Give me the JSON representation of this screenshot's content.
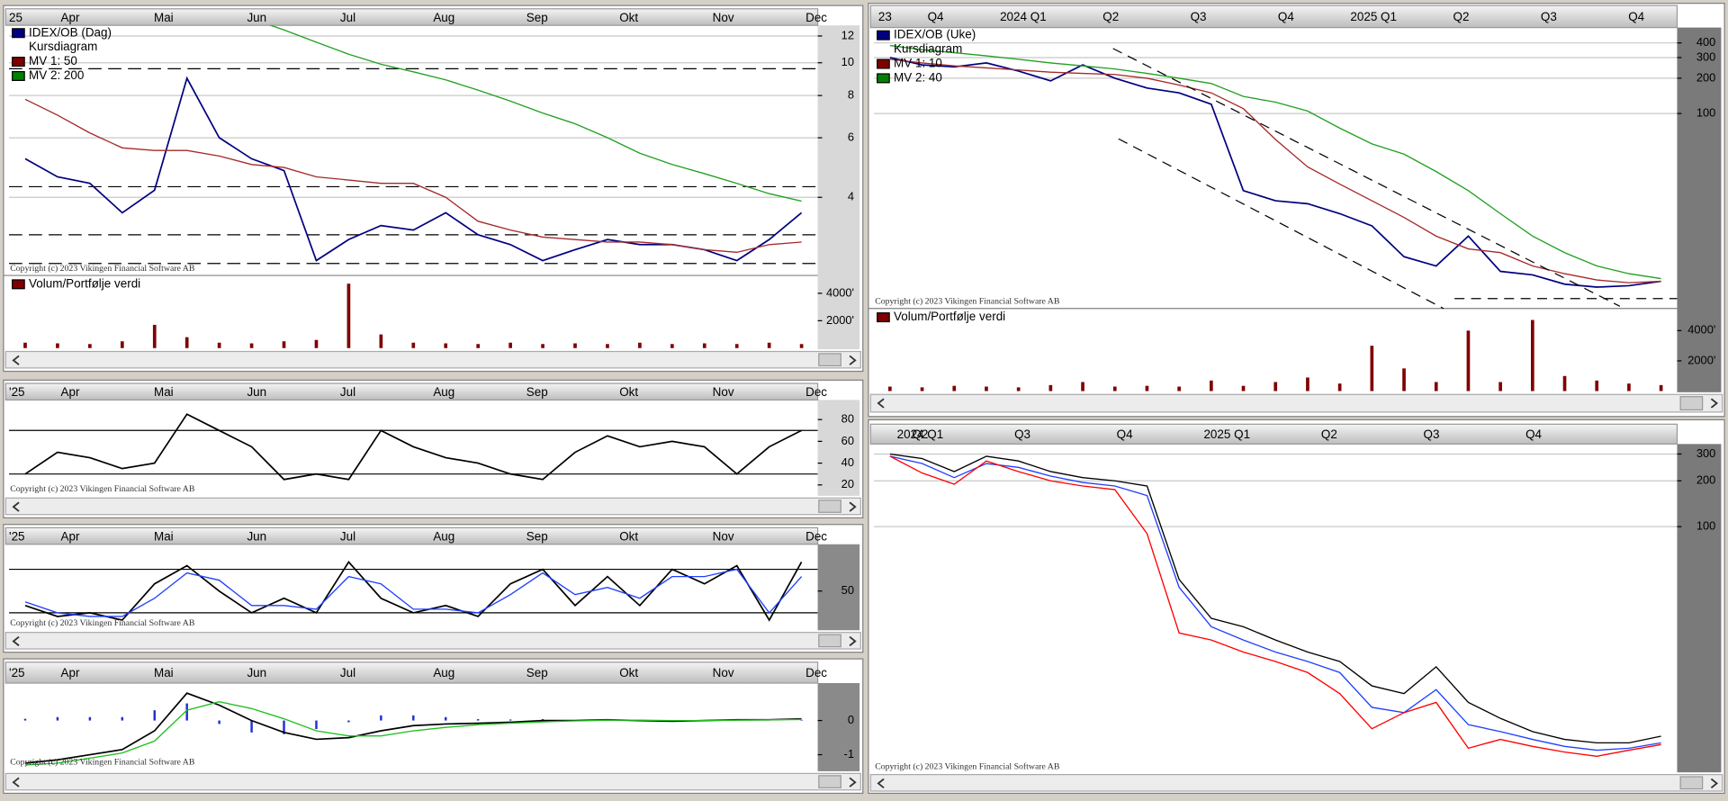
{
  "copyright": "Copyright (c) 2023 Vikingen Financial Software AB",
  "panels": [
    {
      "x_labels": [
        "25",
        "Apr",
        "Mai",
        "Jun",
        "Jul",
        "Aug",
        "Sep",
        "Okt",
        "Nov",
        "Dec"
      ],
      "legend": [
        {
          "text": "IDEX/OB (Dag)",
          "color": "#000080"
        },
        {
          "text": "Kursdiagram"
        },
        {
          "text": "MV 1: 50",
          "color": "#800000"
        },
        {
          "text": "MV 2: 200",
          "color": "#008000"
        }
      ],
      "price": {
        "log": true,
        "ylim": [
          2.35,
          12.9
        ],
        "yticks": [
          12,
          10,
          8,
          6,
          4
        ],
        "grid": true,
        "hline_style": "dashed",
        "hlines": [
          9.6,
          4.3,
          3.1,
          2.55
        ],
        "series": [
          {
            "color": "#000080",
            "values": [
              5.2,
              4.6,
              4.4,
              3.6,
              4.2,
              9.0,
              6.0,
              5.2,
              4.8,
              2.6,
              3.0,
              3.3,
              3.2,
              3.6,
              3.1,
              2.9,
              2.6,
              2.8,
              3.0,
              2.9,
              2.9,
              2.8,
              2.6,
              3.0,
              3.6
            ]
          },
          {
            "color": "#a52a2a",
            "values": [
              7.8,
              7.0,
              6.2,
              5.6,
              5.5,
              5.5,
              5.3,
              5.0,
              4.9,
              4.6,
              4.5,
              4.4,
              4.4,
              4.0,
              3.4,
              3.2,
              3.05,
              3.0,
              2.95,
              2.95,
              2.9,
              2.8,
              2.75,
              2.9,
              2.95
            ]
          },
          {
            "color": "#22a022",
            "values": [
              null,
              null,
              null,
              null,
              null,
              null,
              null,
              13.5,
              12.5,
              11.5,
              10.6,
              9.9,
              9.4,
              8.9,
              8.3,
              7.7,
              7.1,
              6.6,
              6.0,
              5.4,
              5.0,
              4.7,
              4.4,
              4.1,
              3.9
            ]
          }
        ]
      },
      "volume": {
        "title": "Volum/Portfølje verdi",
        "color": "#800000",
        "ylim": [
          0,
          5300
        ],
        "yticks": [
          {
            "value": 4000,
            "label": "4000'"
          },
          {
            "value": 2000,
            "label": "2000'"
          }
        ],
        "values": [
          400,
          350,
          300,
          500,
          1700,
          800,
          400,
          350,
          500,
          600,
          4700,
          1000,
          400,
          350,
          300,
          400,
          300,
          350,
          300,
          400,
          300,
          350,
          300,
          400,
          300
        ]
      }
    },
    {
      "x_labels": [
        "'25",
        "Apr",
        "Mai",
        "Jun",
        "Jul",
        "Aug",
        "Sep",
        "Okt",
        "Nov",
        "Dec"
      ],
      "price": {
        "log": false,
        "ylim": [
          10,
          98
        ],
        "yticks": [
          80,
          60,
          40,
          20
        ],
        "grid": false,
        "hline_style": "solid",
        "hlines": [
          70,
          30
        ],
        "series": [
          {
            "color": "#000000",
            "values": [
              30,
              50,
              45,
              35,
              40,
              85,
              70,
              55,
              25,
              30,
              25,
              70,
              55,
              45,
              40,
              30,
              25,
              50,
              65,
              55,
              60,
              55,
              30,
              55,
              70
            ]
          }
        ]
      }
    },
    {
      "x_labels": [
        "'25",
        "Apr",
        "Mai",
        "Jun",
        "Jul",
        "Aug",
        "Sep",
        "Okt",
        "Nov",
        "Dec"
      ],
      "price": {
        "log": false,
        "ylim": [
          -4,
          114.5
        ],
        "yticks": [
          50
        ],
        "grid": false,
        "hline_style": "solid",
        "hlines": [
          80,
          20
        ],
        "series": [
          {
            "color": "#000000",
            "values": [
              30,
              15,
              20,
              10,
              60,
              85,
              50,
              20,
              40,
              20,
              90,
              40,
              20,
              30,
              15,
              60,
              80,
              30,
              70,
              30,
              80,
              60,
              85,
              10,
              90
            ]
          },
          {
            "color": "#2040ff",
            "values": [
              35,
              20,
              15,
              15,
              40,
              75,
              65,
              30,
              30,
              25,
              70,
              60,
              25,
              25,
              20,
              45,
              75,
              45,
              55,
              40,
              70,
              70,
              80,
              20,
              70
            ]
          }
        ]
      }
    },
    {
      "x_labels": [
        "'25",
        "Apr",
        "Mai",
        "Jun",
        "Jul",
        "Aug",
        "Sep",
        "Okt",
        "Nov",
        "Dec"
      ],
      "price": {
        "log": false,
        "ylim": [
          -1.42,
          1.03
        ],
        "yticks": [
          0,
          -1
        ],
        "grid": false,
        "hline_style": "solid",
        "hlines": [],
        "histogram": {
          "color": "#2030d0",
          "values": [
            0.05,
            0.1,
            0.1,
            0.1,
            0.3,
            0.5,
            -0.1,
            -0.35,
            -0.4,
            -0.25,
            -0.05,
            0.15,
            0.15,
            0.1,
            0.04,
            0.03,
            0.04,
            0.01,
            0.01,
            -0.01,
            -0.02,
            0,
            0.01,
            0,
            0.02
          ]
        },
        "series": [
          {
            "color": "#000000",
            "values": [
              -1.25,
              -1.15,
              -1.0,
              -0.85,
              -0.3,
              0.8,
              0.45,
              0.0,
              -0.35,
              -0.55,
              -0.5,
              -0.3,
              -0.15,
              -0.1,
              -0.08,
              -0.05,
              0,
              0,
              0.02,
              0,
              -0.02,
              0,
              0.02,
              0.02,
              0.05
            ]
          },
          {
            "color": "#20c020",
            "values": [
              -1.3,
              -1.25,
              -1.1,
              -0.95,
              -0.6,
              0.3,
              0.55,
              0.35,
              0.05,
              -0.3,
              -0.45,
              -0.45,
              -0.3,
              -0.2,
              -0.12,
              -0.08,
              -0.04,
              -0.01,
              0.01,
              0.01,
              0,
              0,
              0.01,
              0.02,
              0.03
            ]
          }
        ]
      }
    },
    {
      "x_labels": [
        "23",
        "Q4",
        "2024 Q1",
        "Q2",
        "Q3",
        "Q4",
        "2025 Q1",
        "Q2",
        "Q3",
        "Q4"
      ],
      "legend": [
        {
          "text": "IDEX/OB (Uke)",
          "color": "#000080"
        },
        {
          "text": "Kursdiagram"
        },
        {
          "text": "MV 1: 10",
          "color": "#800000"
        },
        {
          "text": "MV 2: 40",
          "color": "#008000"
        }
      ],
      "price": {
        "log": true,
        "ylim": [
          2.17,
          541
        ],
        "yticks": [
          400,
          300,
          200,
          100
        ],
        "grid": true,
        "hline_style": "dashed",
        "hlines": [],
        "series": [
          {
            "color": "#000080",
            "values": [
              300,
              260,
              250,
              270,
              230,
              190,
              260,
              200,
              165,
              150,
              120,
              22,
              18,
              17,
              14,
              11,
              6,
              5,
              9,
              4.5,
              4.2,
              3.5,
              3.3,
              3.4,
              3.7
            ]
          },
          {
            "color": "#a52a2a",
            "values": [
              290,
              270,
              255,
              245,
              235,
              225,
              220,
              215,
              200,
              175,
              150,
              110,
              60,
              35,
              25,
              18,
              13,
              9,
              7,
              6.5,
              5,
              4.3,
              3.8,
              3.6,
              3.7
            ]
          },
          {
            "color": "#22a022",
            "values": [
              380,
              350,
              330,
              310,
              290,
              270,
              255,
              240,
              220,
              200,
              180,
              140,
              125,
              105,
              75,
              55,
              45,
              32,
              22,
              14,
              9,
              6.5,
              5,
              4.3,
              3.9
            ]
          }
        ]
      },
      "volume": {
        "title": "Volum/Portfølje verdi",
        "color": "#800000",
        "ylim": [
          0,
          5460
        ],
        "yticks": [
          {
            "value": 4000,
            "label": "4000'"
          },
          {
            "value": 2000,
            "label": "2000'"
          }
        ],
        "values": [
          300,
          250,
          350,
          300,
          250,
          400,
          600,
          300,
          350,
          300,
          700,
          350,
          600,
          900,
          500,
          3000,
          1500,
          600,
          4000,
          600,
          4700,
          1000,
          700,
          500,
          400
        ]
      }
    },
    {
      "x_labels": [
        "2024 Q1",
        "Q2",
        "Q3",
        "Q4",
        "2025 Q1",
        "Q2",
        "Q3",
        "Q4"
      ],
      "price": {
        "log": true,
        "ylim": [
          2.39,
          349
        ],
        "yticks": [
          300,
          200,
          100
        ],
        "grid": true,
        "hline_style": "dashed",
        "hlines": [],
        "series": [
          {
            "color": "#000000",
            "values": [
              300,
              280,
              230,
              290,
              270,
              230,
              210,
              200,
              185,
              45,
              25,
              22,
              18,
              15,
              13,
              9,
              8,
              12,
              7,
              5.5,
              4.5,
              4,
              3.8,
              3.8,
              4.2
            ]
          },
          {
            "color": "#2040ff",
            "values": [
              290,
              260,
              210,
              260,
              245,
              215,
              195,
              185,
              160,
              40,
              22,
              18,
              15,
              13,
              11,
              6.5,
              6,
              8.5,
              5,
              4.5,
              4,
              3.6,
              3.4,
              3.5,
              3.8
            ]
          },
          {
            "color": "#ff0000",
            "values": [
              290,
              225,
              190,
              270,
              230,
              200,
              185,
              175,
              90,
              20,
              18,
              15,
              13,
              11,
              8,
              4.7,
              6,
              7,
              3.5,
              4,
              3.6,
              3.3,
              3.1,
              3.4,
              3.7
            ]
          }
        ]
      }
    }
  ]
}
